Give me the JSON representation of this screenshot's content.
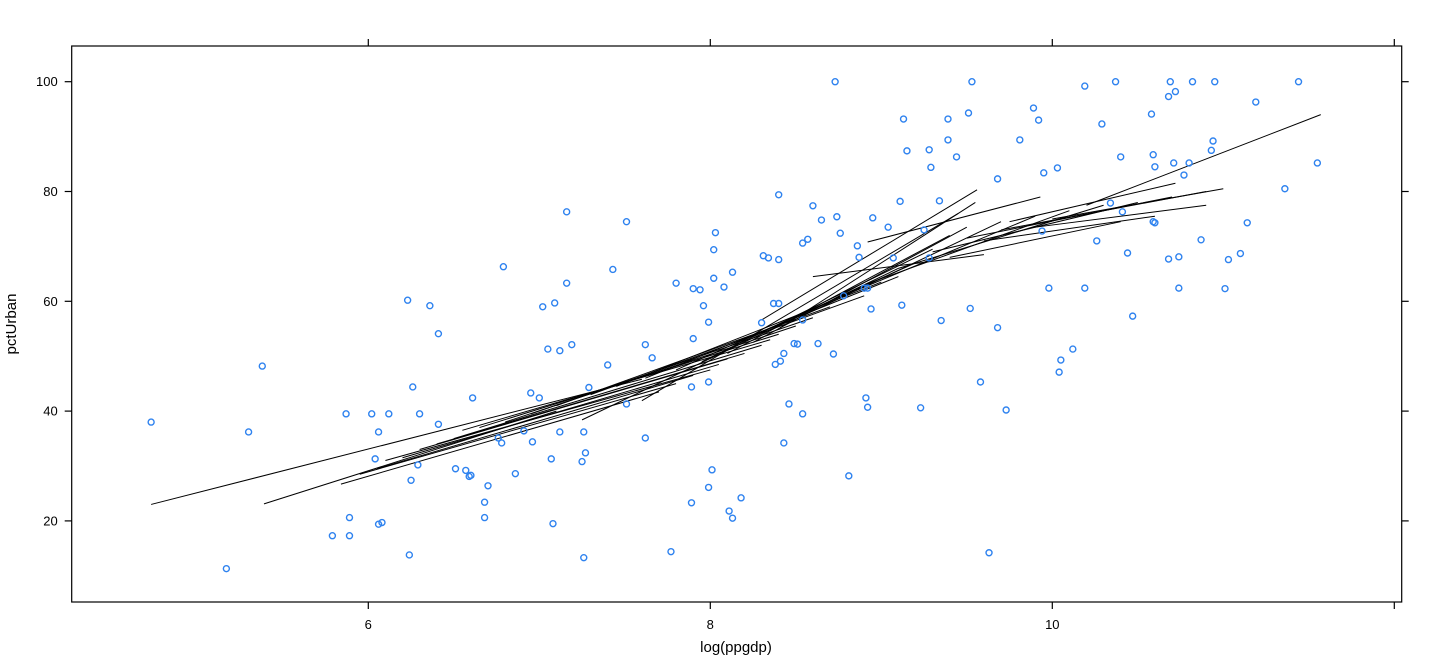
{
  "chart_data": {
    "type": "scatter",
    "title": "",
    "xlabel": "log(ppgdp)",
    "ylabel": "pctUrban",
    "xlim": [
      4.27,
      12.04
    ],
    "ylim": [
      5.2,
      106.5
    ],
    "grid": false,
    "frame": "box-all-sides-ticks-out",
    "x_ticks": [
      {
        "value": 6,
        "label": "6"
      },
      {
        "value": 8,
        "label": "8"
      },
      {
        "value": 10,
        "label": "10"
      },
      {
        "value": 12,
        "label": ""
      }
    ],
    "y_ticks": [
      {
        "value": 20,
        "label": "20"
      },
      {
        "value": 40,
        "label": "40"
      },
      {
        "value": 60,
        "label": "60"
      },
      {
        "value": 80,
        "label": "80"
      },
      {
        "value": 100,
        "label": "100"
      }
    ],
    "point_color": "#2e82ef",
    "line_color": "#000000",
    "points": [
      [
        8.73,
        100
      ],
      [
        9.53,
        100
      ],
      [
        10.19,
        99.2
      ],
      [
        10.37,
        100
      ],
      [
        10.69,
        100
      ],
      [
        10.82,
        100
      ],
      [
        10.95,
        100
      ],
      [
        11.44,
        100
      ],
      [
        10.72,
        98.2
      ],
      [
        10.68,
        97.3
      ],
      [
        11.19,
        96.3
      ],
      [
        9.51,
        94.3
      ],
      [
        9.89,
        95.2
      ],
      [
        9.13,
        93.2
      ],
      [
        9.39,
        93.2
      ],
      [
        9.92,
        93
      ],
      [
        10.58,
        94.1
      ],
      [
        10.29,
        92.3
      ],
      [
        9.15,
        87.4
      ],
      [
        9.28,
        87.6
      ],
      [
        9.39,
        89.4
      ],
      [
        9.44,
        86.3
      ],
      [
        9.29,
        84.4
      ],
      [
        9.81,
        89.4
      ],
      [
        10.94,
        89.2
      ],
      [
        10.93,
        87.5
      ],
      [
        10.4,
        86.3
      ],
      [
        10.59,
        86.7
      ],
      [
        10.6,
        84.5
      ],
      [
        10.71,
        85.2
      ],
      [
        10.8,
        85.2
      ],
      [
        10.77,
        83
      ],
      [
        11.55,
        85.2
      ],
      [
        9.68,
        82.3
      ],
      [
        9.95,
        83.4
      ],
      [
        10.03,
        84.3
      ],
      [
        11.36,
        80.5
      ],
      [
        8.4,
        79.4
      ],
      [
        9.11,
        78.2
      ],
      [
        9.34,
        78.3
      ],
      [
        8.6,
        77.4
      ],
      [
        7.16,
        76.3
      ],
      [
        7.51,
        74.5
      ],
      [
        8.65,
        74.8
      ],
      [
        8.74,
        75.4
      ],
      [
        8.95,
        75.2
      ],
      [
        9.04,
        73.5
      ],
      [
        9.25,
        73
      ],
      [
        8.03,
        72.5
      ],
      [
        8.76,
        72.4
      ],
      [
        10.34,
        77.9
      ],
      [
        10.41,
        76.3
      ],
      [
        10.6,
        74.3
      ],
      [
        10.59,
        74.5
      ],
      [
        11.14,
        74.3
      ],
      [
        9.94,
        72.8
      ],
      [
        10.87,
        71.2
      ],
      [
        8.02,
        69.4
      ],
      [
        8.31,
        68.3
      ],
      [
        8.34,
        67.9
      ],
      [
        8.4,
        67.6
      ],
      [
        8.54,
        70.6
      ],
      [
        8.57,
        71.3
      ],
      [
        8.86,
        70.1
      ],
      [
        8.87,
        68
      ],
      [
        9.07,
        67.9
      ],
      [
        9.28,
        67.9
      ],
      [
        10.26,
        71
      ],
      [
        10.44,
        68.8
      ],
      [
        10.68,
        67.7
      ],
      [
        10.74,
        68.1
      ],
      [
        11.03,
        67.6
      ],
      [
        11.1,
        68.7
      ],
      [
        8.9,
        62.4
      ],
      [
        8.92,
        62.4
      ],
      [
        8.78,
        61
      ],
      [
        9.98,
        62.4
      ],
      [
        10.19,
        62.4
      ],
      [
        10.74,
        62.4
      ],
      [
        11.01,
        62.3
      ],
      [
        8.13,
        65.3
      ],
      [
        8.02,
        64.2
      ],
      [
        8.08,
        62.6
      ],
      [
        7.9,
        62.3
      ],
      [
        7.94,
        62.1
      ],
      [
        7.8,
        63.3
      ],
      [
        7.16,
        63.3
      ],
      [
        7.43,
        65.8
      ],
      [
        6.79,
        66.3
      ],
      [
        7.96,
        59.2
      ],
      [
        7.99,
        56.2
      ],
      [
        8.37,
        59.6
      ],
      [
        8.4,
        59.6
      ],
      [
        8.54,
        56.6
      ],
      [
        8.94,
        58.6
      ],
      [
        9.12,
        59.3
      ],
      [
        9.35,
        56.5
      ],
      [
        9.52,
        58.7
      ],
      [
        8.3,
        56.1
      ],
      [
        6.23,
        60.2
      ],
      [
        6.36,
        59.2
      ],
      [
        7.02,
        59
      ],
      [
        7.09,
        59.7
      ],
      [
        6.41,
        54.1
      ],
      [
        10.47,
        57.3
      ],
      [
        9.68,
        55.2
      ],
      [
        10.12,
        51.3
      ],
      [
        10.05,
        49.3
      ],
      [
        10.04,
        47.1
      ],
      [
        9.58,
        45.3
      ],
      [
        9.73,
        40.2
      ],
      [
        7.05,
        51.3
      ],
      [
        7.12,
        51
      ],
      [
        7.19,
        52.1
      ],
      [
        7.62,
        52.1
      ],
      [
        7.4,
        48.4
      ],
      [
        7.66,
        49.7
      ],
      [
        7.9,
        53.2
      ],
      [
        8.49,
        52.3
      ],
      [
        8.51,
        52.2
      ],
      [
        8.63,
        52.3
      ],
      [
        8.72,
        50.4
      ],
      [
        8.38,
        48.5
      ],
      [
        8.41,
        49.1
      ],
      [
        8.43,
        50.5
      ],
      [
        8.91,
        42.4
      ],
      [
        8.92,
        40.7
      ],
      [
        9.23,
        40.6
      ],
      [
        8.46,
        41.3
      ],
      [
        8.54,
        39.5
      ],
      [
        8.43,
        34.2
      ],
      [
        8.81,
        28.2
      ],
      [
        7.89,
        44.4
      ],
      [
        7.99,
        45.3
      ],
      [
        6.95,
        43.3
      ],
      [
        7,
        42.4
      ],
      [
        7.29,
        44.3
      ],
      [
        7.51,
        41.3
      ],
      [
        7.62,
        35.1
      ],
      [
        6.91,
        36.4
      ],
      [
        6.96,
        34.4
      ],
      [
        7.12,
        36.2
      ],
      [
        7.26,
        36.2
      ],
      [
        7.27,
        32.4
      ],
      [
        7.25,
        30.8
      ],
      [
        7.07,
        31.3
      ],
      [
        6.86,
        28.6
      ],
      [
        8.01,
        29.3
      ],
      [
        7.99,
        26.1
      ],
      [
        8.18,
        24.2
      ],
      [
        7.89,
        23.3
      ],
      [
        8.11,
        21.8
      ],
      [
        8.13,
        20.5
      ],
      [
        7.08,
        19.5
      ],
      [
        7.26,
        13.3
      ],
      [
        7.77,
        14.4
      ],
      [
        6.26,
        44.4
      ],
      [
        6.61,
        42.4
      ],
      [
        5.87,
        39.5
      ],
      [
        6.02,
        39.5
      ],
      [
        6.12,
        39.5
      ],
      [
        6.3,
        39.5
      ],
      [
        5.3,
        36.2
      ],
      [
        6.06,
        36.2
      ],
      [
        6.41,
        37.6
      ],
      [
        4.73,
        38
      ],
      [
        5.38,
        48.2
      ],
      [
        6.04,
        31.3
      ],
      [
        6.29,
        30.2
      ],
      [
        6.25,
        27.4
      ],
      [
        6.51,
        29.5
      ],
      [
        6.57,
        29.2
      ],
      [
        6.6,
        28.3
      ],
      [
        6.59,
        28.1
      ],
      [
        6.7,
        26.4
      ],
      [
        6.68,
        23.4
      ],
      [
        6.68,
        20.6
      ],
      [
        6.76,
        35.1
      ],
      [
        6.78,
        34.2
      ],
      [
        5.89,
        20.6
      ],
      [
        5.89,
        17.3
      ],
      [
        5.79,
        17.3
      ],
      [
        6.06,
        19.4
      ],
      [
        6.08,
        19.7
      ],
      [
        6.24,
        13.8
      ],
      [
        5.17,
        11.3
      ],
      [
        9.63,
        14.2
      ]
    ],
    "segments": [
      [
        4.73,
        23.0,
        7.6,
        45.8
      ],
      [
        5.39,
        23.1,
        7.1,
        40.0
      ],
      [
        5.84,
        26.7,
        7.7,
        43.5
      ],
      [
        5.95,
        28.5,
        7.8,
        45.0
      ],
      [
        6.05,
        29.5,
        7.9,
        46.5
      ],
      [
        6.1,
        31.0,
        8.0,
        47.5
      ],
      [
        6.2,
        31.5,
        8.05,
        48.5
      ],
      [
        6.3,
        33.0,
        8.1,
        49.5
      ],
      [
        6.4,
        34.0,
        8.2,
        50.5
      ],
      [
        6.5,
        35.0,
        8.3,
        52.0
      ],
      [
        6.55,
        36.5,
        8.35,
        53.0
      ],
      [
        6.65,
        37.0,
        8.4,
        54.0
      ],
      [
        6.8,
        38.0,
        8.5,
        55.5
      ],
      [
        6.95,
        39.5,
        8.6,
        57.0
      ],
      [
        7.1,
        41.0,
        8.7,
        59.0
      ],
      [
        7.25,
        38.4,
        9.1,
        66.0
      ],
      [
        7.3,
        43.0,
        8.9,
        61.0
      ],
      [
        7.45,
        44.5,
        9.0,
        63.5
      ],
      [
        7.6,
        41.9,
        9.45,
        76.0
      ],
      [
        7.62,
        46.0,
        9.1,
        64.5
      ],
      [
        7.8,
        47.5,
        9.2,
        67.0
      ],
      [
        7.95,
        49.0,
        9.3,
        69.5
      ],
      [
        8.1,
        50.5,
        9.4,
        72.0
      ],
      [
        8.25,
        52.5,
        9.5,
        73.5
      ],
      [
        8.3,
        56.6,
        9.56,
        80.3
      ],
      [
        8.4,
        55.0,
        9.55,
        78.0
      ],
      [
        8.55,
        57.5,
        9.7,
        74.5
      ],
      [
        8.7,
        60.0,
        9.9,
        75.5
      ],
      [
        8.9,
        63.0,
        10.1,
        76.5
      ],
      [
        8.92,
        70.8,
        9.93,
        79.0
      ],
      [
        9.1,
        66.0,
        10.3,
        77.5
      ],
      [
        9.3,
        69.0,
        10.5,
        78.0
      ],
      [
        9.5,
        71.5,
        10.7,
        79.0
      ],
      [
        9.7,
        73.0,
        10.9,
        80.0
      ],
      [
        9.75,
        74.5,
        10.72,
        81.5
      ],
      [
        8.6,
        64.5,
        9.6,
        68.5
      ],
      [
        9.4,
        68.0,
        10.4,
        74.5
      ],
      [
        9.6,
        71.0,
        10.6,
        75.5
      ],
      [
        9.9,
        73.5,
        10.9,
        77.5
      ],
      [
        10.0,
        75.0,
        11.0,
        80.5
      ],
      [
        10.2,
        77.5,
        11.57,
        94.0
      ]
    ]
  }
}
